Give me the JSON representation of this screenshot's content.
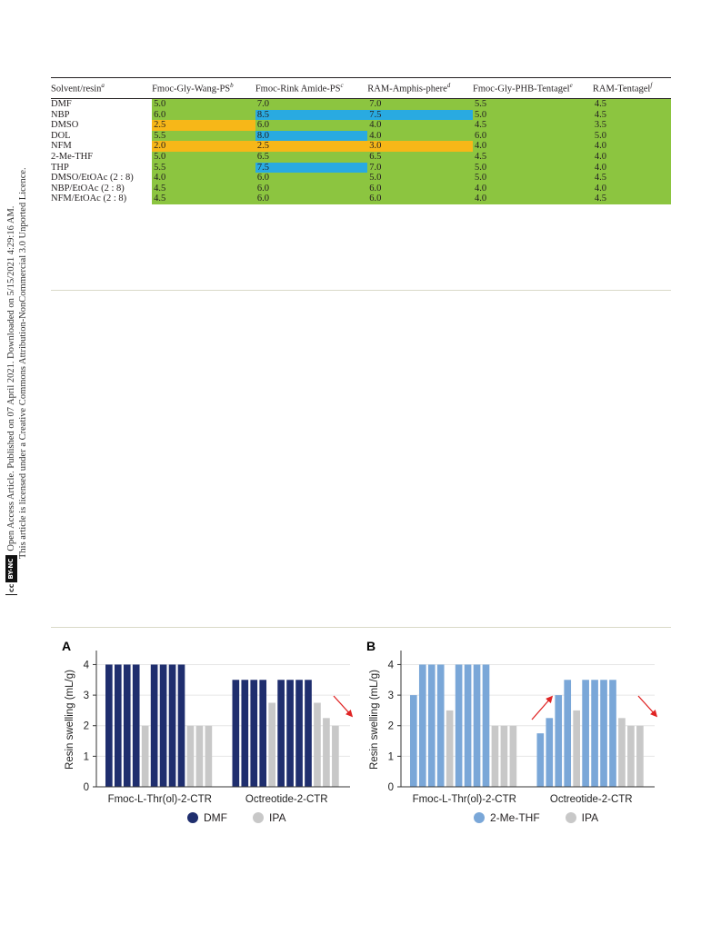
{
  "side_note": {
    "line1": "Open Access Article. Published on 07 April 2021. Downloaded on 5/15/2021 4:29:16 AM.",
    "line2": "This article is licensed under a Creative Commons Attribution-NonCommercial 3.0 Unported Licence.",
    "badge_cc": "cc",
    "badge_by": "BY-NC"
  },
  "table": {
    "headers": [
      {
        "text": "Solvent/resin",
        "sup": "a"
      },
      {
        "text": "Fmoc-Gly-Wang-PS",
        "sup": "b"
      },
      {
        "text": "Fmoc-Rink Amide-PS",
        "sup": "c"
      },
      {
        "text": "RAM-Amphis-phere",
        "sup": "d"
      },
      {
        "text": "Fmoc-Gly-PHB-Tentagel",
        "sup": "e"
      },
      {
        "text": "RAM-Tentagel",
        "sup": "f"
      }
    ],
    "rows": [
      {
        "solvent": "DMF",
        "values": [
          "5.0",
          "7.0",
          "7.0",
          "5.5",
          "4.5"
        ],
        "colors": [
          "g",
          "g",
          "g",
          "g",
          "g"
        ]
      },
      {
        "solvent": "NBP",
        "values": [
          "6.0",
          "8.5",
          "7.5",
          "5.0",
          "4.5"
        ],
        "colors": [
          "g",
          "b",
          "b",
          "g",
          "g"
        ]
      },
      {
        "solvent": "DMSO",
        "values": [
          "2.5",
          "6.0",
          "4.0",
          "4.5",
          "3.5"
        ],
        "colors": [
          "o",
          "g",
          "g",
          "g",
          "g"
        ]
      },
      {
        "solvent": "DOL",
        "values": [
          "5.5",
          "8.0",
          "4.0",
          "6.0",
          "5.0"
        ],
        "colors": [
          "g",
          "b",
          "g",
          "g",
          "g"
        ]
      },
      {
        "solvent": "NFM",
        "values": [
          "2.0",
          "2.5",
          "3.0",
          "4.0",
          "4.0"
        ],
        "colors": [
          "o",
          "o",
          "o",
          "g",
          "g"
        ]
      },
      {
        "solvent": "2-Me-THF",
        "values": [
          "5.0",
          "6.5",
          "6.5",
          "4.5",
          "4.0"
        ],
        "colors": [
          "g",
          "g",
          "g",
          "g",
          "g"
        ]
      },
      {
        "solvent": "THP",
        "values": [
          "5.5",
          "7.5",
          "7.0",
          "5.0",
          "4.0"
        ],
        "colors": [
          "g",
          "b",
          "g",
          "g",
          "g"
        ]
      },
      {
        "solvent": "DMSO/EtOAc (2 : 8)",
        "values": [
          "4.0",
          "6.0",
          "5.0",
          "5.0",
          "4.5"
        ],
        "colors": [
          "g",
          "g",
          "g",
          "g",
          "g"
        ]
      },
      {
        "solvent": "NBP/EtOAc (2 : 8)",
        "values": [
          "4.5",
          "6.0",
          "6.0",
          "4.0",
          "4.0"
        ],
        "colors": [
          "g",
          "g",
          "g",
          "g",
          "g"
        ]
      },
      {
        "solvent": "NFM/EtOAc (2 : 8)",
        "values": [
          "4.5",
          "6.0",
          "6.0",
          "4.0",
          "4.5"
        ],
        "colors": [
          "g",
          "g",
          "g",
          "g",
          "g"
        ]
      }
    ]
  },
  "chart_data": [
    {
      "type": "bar",
      "panel": "A",
      "ylabel": "Resin swelling (mL/g)",
      "ylim": [
        0,
        4.4
      ],
      "yticks": [
        0,
        1,
        2,
        3,
        4
      ],
      "groups": [
        "Fmoc-L-Thr(ol)-2-CTR",
        "Octreotide-2-CTR"
      ],
      "legend": [
        {
          "name": "DMF",
          "color": "#1f2e6e"
        },
        {
          "name": "IPA",
          "color": "#c8c8c8"
        }
      ],
      "bars": [
        [
          {
            "s": "DMF",
            "v": 4
          },
          {
            "s": "DMF",
            "v": 4
          },
          {
            "s": "DMF",
            "v": 4
          },
          {
            "s": "DMF",
            "v": 4
          },
          {
            "s": "IPA",
            "v": 2
          },
          {
            "s": "DMF",
            "v": 4
          },
          {
            "s": "DMF",
            "v": 4
          },
          {
            "s": "DMF",
            "v": 4
          },
          {
            "s": "DMF",
            "v": 4
          },
          {
            "s": "IPA",
            "v": 2
          },
          {
            "s": "IPA",
            "v": 2
          },
          {
            "s": "IPA",
            "v": 2
          }
        ],
        [
          {
            "s": "DMF",
            "v": 3.5
          },
          {
            "s": "DMF",
            "v": 3.5
          },
          {
            "s": "DMF",
            "v": 3.5
          },
          {
            "s": "DMF",
            "v": 3.5
          },
          {
            "s": "IPA",
            "v": 2.75
          },
          {
            "s": "DMF",
            "v": 3.5
          },
          {
            "s": "DMF",
            "v": 3.5
          },
          {
            "s": "DMF",
            "v": 3.5
          },
          {
            "s": "DMF",
            "v": 3.5
          },
          {
            "s": "IPA",
            "v": 2.75
          },
          {
            "s": "IPA",
            "v": 2.25
          },
          {
            "s": "IPA",
            "v": 2
          }
        ]
      ],
      "arrows": [
        "down"
      ],
      "legend_loc": "bottom"
    },
    {
      "type": "bar",
      "panel": "B",
      "ylabel": "Resin swelling (mL/g)",
      "ylim": [
        0,
        4.4
      ],
      "yticks": [
        0,
        1,
        2,
        3,
        4
      ],
      "groups": [
        "Fmoc-L-Thr(ol)-2-CTR",
        "Octreotide-2-CTR"
      ],
      "legend": [
        {
          "name": "2-Me-THF",
          "color": "#7aa7d8"
        },
        {
          "name": "IPA",
          "color": "#c8c8c8"
        }
      ],
      "bars": [
        [
          {
            "s": "2-Me-THF",
            "v": 3
          },
          {
            "s": "2-Me-THF",
            "v": 4
          },
          {
            "s": "2-Me-THF",
            "v": 4
          },
          {
            "s": "2-Me-THF",
            "v": 4
          },
          {
            "s": "IPA",
            "v": 2.5
          },
          {
            "s": "2-Me-THF",
            "v": 4
          },
          {
            "s": "2-Me-THF",
            "v": 4
          },
          {
            "s": "2-Me-THF",
            "v": 4
          },
          {
            "s": "2-Me-THF",
            "v": 4
          },
          {
            "s": "IPA",
            "v": 2
          },
          {
            "s": "IPA",
            "v": 2
          },
          {
            "s": "IPA",
            "v": 2
          }
        ],
        [
          {
            "s": "2-Me-THF",
            "v": 1.75
          },
          {
            "s": "2-Me-THF",
            "v": 2.25
          },
          {
            "s": "2-Me-THF",
            "v": 3
          },
          {
            "s": "2-Me-THF",
            "v": 3.5
          },
          {
            "s": "IPA",
            "v": 2.5
          },
          {
            "s": "2-Me-THF",
            "v": 3.5
          },
          {
            "s": "2-Me-THF",
            "v": 3.5
          },
          {
            "s": "2-Me-THF",
            "v": 3.5
          },
          {
            "s": "2-Me-THF",
            "v": 3.5
          },
          {
            "s": "IPA",
            "v": 2.25
          },
          {
            "s": "IPA",
            "v": 2
          },
          {
            "s": "IPA",
            "v": 2
          }
        ]
      ],
      "arrows": [
        "up",
        "down"
      ],
      "legend_loc": "bottom"
    }
  ]
}
